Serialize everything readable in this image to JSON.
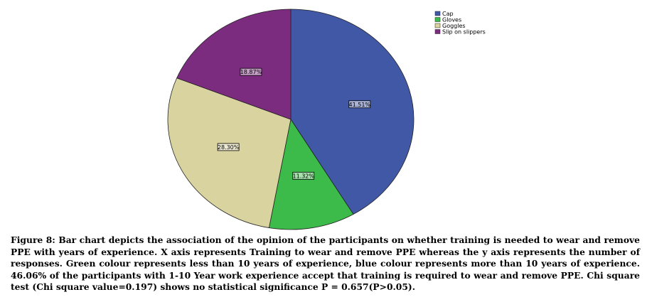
{
  "chart_data": {
    "type": "pie",
    "slices": [
      {
        "label": "Cap",
        "value": 41.51,
        "display": "41.51%",
        "color": "#4058A6"
      },
      {
        "label": "Gloves",
        "value": 11.32,
        "display": "11.32%",
        "color": "#3CBB4B"
      },
      {
        "label": "Goggles",
        "value": 28.3,
        "display": "28.30%",
        "color": "#D9D3A0"
      },
      {
        "label": "Slip on slippers",
        "value": 18.87,
        "display": "18.87%",
        "color": "#7C2C7F"
      }
    ],
    "legend_position": "top-right",
    "start": "12 o'clock",
    "direction": "clockwise"
  },
  "caption": "Figure 8: Bar chart depicts the association of the opinion of the participants on whether training is needed to wear and remove PPE with years of experience.  X axis represents Training to wear and remove PPE whereas the y axis represents the number of responses. Green colour represents less than 10 years of experience, blue colour represents more than 10 years of experience. 46.06% of the participants with 1-10 Year work experience accept that training is required to wear and remove PPE. Chi square test (Chi square value=0.197)  shows no statistical significance P = 0.657(P>0.05)."
}
